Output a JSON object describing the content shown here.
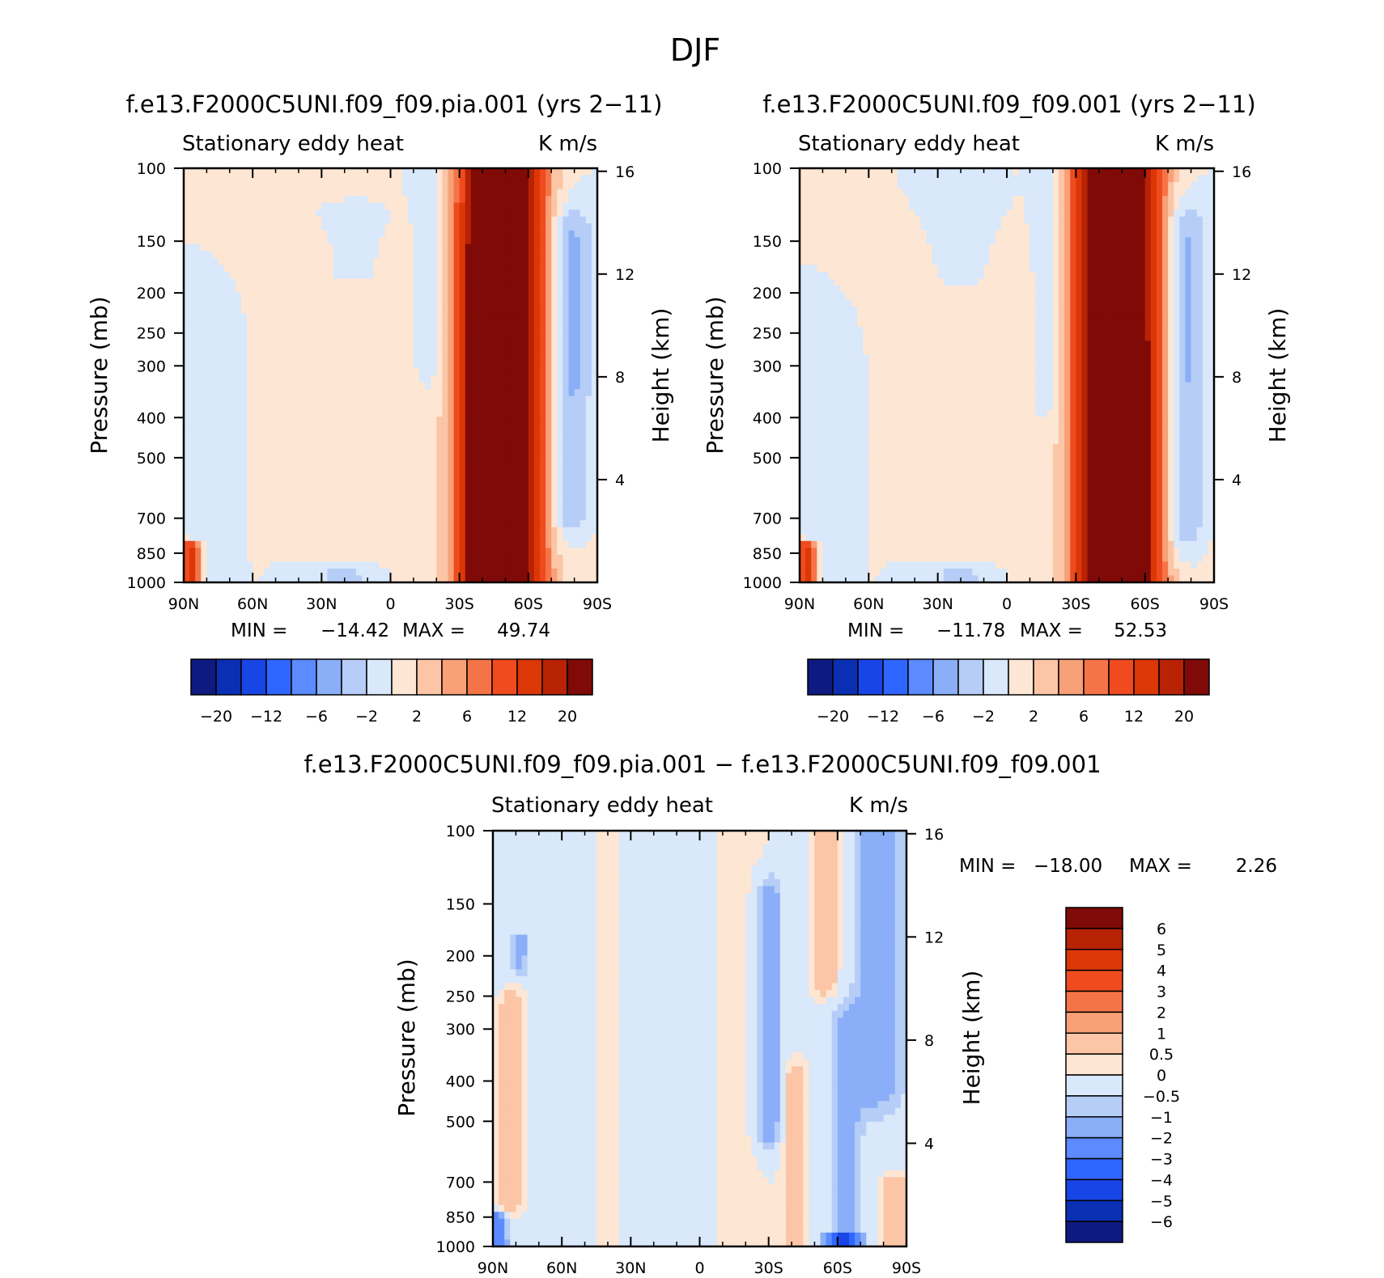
{
  "figure": {
    "title": "DJF",
    "colors": {
      "ramp_main": [
        "#0d1a80",
        "#0b2fb3",
        "#1845e6",
        "#2f66ff",
        "#5b8bff",
        "#8aaef7",
        "#b5cdf7",
        "#d9e8fa",
        "#fde6d3",
        "#fbc5a6",
        "#f8a077",
        "#f57447",
        "#ef4b1f",
        "#dc3707",
        "#b82205",
        "#7f0a07"
      ],
      "zero_blue": "#d9e8fa",
      "zero_red": "#fde6d3"
    }
  },
  "chart_data": [
    {
      "id": "panel1",
      "type": "heatmap",
      "title": "f.e13.F2000C5UNI.f09_f09.pia.001 (yrs 2−11)",
      "left_label": "Stationary eddy heat",
      "right_label": "K m/s",
      "xlabel": "",
      "ylabel": "Pressure (mb)",
      "y2label": "Height (km)",
      "x_ticks": [
        "90N",
        "60N",
        "30N",
        "0",
        "30S",
        "60S",
        "90S"
      ],
      "x_range": [
        90,
        -90
      ],
      "y_ticks": [
        100,
        150,
        200,
        250,
        300,
        400,
        500,
        700,
        850,
        1000
      ],
      "y_range": [
        100,
        1000
      ],
      "y_scale": "log",
      "y2_ticks": [
        16,
        12,
        8,
        4
      ],
      "stats": {
        "min_label": "MIN =",
        "min": "−14.42",
        "max_label": "MAX =",
        "max": "49.74"
      },
      "colorbar": {
        "orientation": "horizontal",
        "labels": [
          "−20",
          "−12",
          "−6",
          "−2",
          "2",
          "6",
          "12",
          "20"
        ]
      },
      "features": [
        {
          "lat": -48,
          "sigma_lat": 11,
          "p_top": 100,
          "p_bot": 1000,
          "amp": 38
        },
        {
          "lat": -43,
          "sigma_lat": 6,
          "p_top": 180,
          "p_bot": 1000,
          "amp": 20
        },
        {
          "lat": -78,
          "sigma_lat": 7,
          "p_top": 150,
          "p_bot": 650,
          "amp": -5
        },
        {
          "lat": -20,
          "sigma_lat": 5,
          "p_top": 100,
          "p_bot": 300,
          "amp": -1.5
        },
        {
          "lat": 15,
          "sigma_lat": 6,
          "p_top": 130,
          "p_bot": 180,
          "amp": -1.5
        },
        {
          "lat": 12,
          "sigma_lat": 14,
          "p_top": 180,
          "p_bot": 900,
          "amp": 0.7
        },
        {
          "lat": 20,
          "sigma_lat": 10,
          "p_top": 930,
          "p_bot": 1000,
          "amp": -3.2
        },
        {
          "lat": 80,
          "sigma_lat": 5,
          "p_top": 280,
          "p_bot": 850,
          "amp": -1.6
        },
        {
          "lat": 87,
          "sigma_lat": 3,
          "p_top": 820,
          "p_bot": 1000,
          "amp": 14
        },
        {
          "lat": -88,
          "sigma_lat": 8,
          "p_top": 400,
          "p_bot": 1000,
          "amp": 0.8
        }
      ]
    },
    {
      "id": "panel2",
      "type": "heatmap",
      "title": "f.e13.F2000C5UNI.f09_f09.001 (yrs 2−11)",
      "left_label": "Stationary eddy heat",
      "right_label": "K m/s",
      "xlabel": "",
      "ylabel": "Pressure (mb)",
      "y2label": "Height (km)",
      "x_ticks": [
        "90N",
        "60N",
        "30N",
        "0",
        "30S",
        "60S",
        "90S"
      ],
      "x_range": [
        90,
        -90
      ],
      "y_ticks": [
        100,
        150,
        200,
        250,
        300,
        400,
        500,
        700,
        850,
        1000
      ],
      "y_range": [
        100,
        1000
      ],
      "y_scale": "log",
      "y2_ticks": [
        16,
        12,
        8,
        4
      ],
      "stats": {
        "min_label": "MIN =",
        "min": "−11.78",
        "max_label": "MAX =",
        "max": "52.53"
      },
      "colorbar": {
        "orientation": "horizontal",
        "labels": [
          "−20",
          "−12",
          "−6",
          "−2",
          "2",
          "6",
          "12",
          "20"
        ]
      },
      "features": [
        {
          "lat": -48,
          "sigma_lat": 11,
          "p_top": 100,
          "p_bot": 1000,
          "amp": 40
        },
        {
          "lat": -47,
          "sigma_lat": 6,
          "p_top": 280,
          "p_bot": 1000,
          "amp": 20
        },
        {
          "lat": -77,
          "sigma_lat": 7,
          "p_top": 150,
          "p_bot": 700,
          "amp": -5
        },
        {
          "lat": -20,
          "sigma_lat": 5,
          "p_top": 100,
          "p_bot": 350,
          "amp": -1.5
        },
        {
          "lat": 18,
          "sigma_lat": 7,
          "p_top": 110,
          "p_bot": 180,
          "amp": -1.5
        },
        {
          "lat": 12,
          "sigma_lat": 14,
          "p_top": 180,
          "p_bot": 900,
          "amp": 0.7
        },
        {
          "lat": 20,
          "sigma_lat": 10,
          "p_top": 930,
          "p_bot": 1000,
          "amp": -3.2
        },
        {
          "lat": 80,
          "sigma_lat": 5,
          "p_top": 300,
          "p_bot": 850,
          "amp": -1.8
        },
        {
          "lat": 87,
          "sigma_lat": 3,
          "p_top": 820,
          "p_bot": 1000,
          "amp": 14
        },
        {
          "lat": -88,
          "sigma_lat": 8,
          "p_top": 400,
          "p_bot": 1000,
          "amp": 0.8
        }
      ]
    },
    {
      "id": "panel3",
      "type": "heatmap",
      "title": "f.e13.F2000C5UNI.f09_f09.pia.001 − f.e13.F2000C5UNI.f09_f09.001",
      "left_label": "Stationary eddy heat",
      "right_label": "K m/s",
      "xlabel": "",
      "ylabel": "Pressure (mb)",
      "y2label": "Height (km)",
      "x_ticks": [
        "90N",
        "60N",
        "30N",
        "0",
        "30S",
        "60S",
        "90S"
      ],
      "x_range": [
        90,
        -90
      ],
      "y_ticks": [
        100,
        150,
        200,
        250,
        300,
        400,
        500,
        700,
        850,
        1000
      ],
      "y_range": [
        100,
        1000
      ],
      "y_scale": "log",
      "y2_ticks": [
        16,
        12,
        8,
        4
      ],
      "stats": {
        "min_label": "MIN =",
        "min": "−18.00",
        "max_label": "MAX =",
        "max": "2.26"
      },
      "colorbar": {
        "orientation": "vertical",
        "labels": [
          "6",
          "5",
          "4",
          "3",
          "2",
          "1",
          "0.5",
          "0",
          "−0.5",
          "−1",
          "−2",
          "−3",
          "−4",
          "−5",
          "−6"
        ]
      },
      "features": [
        {
          "lat": -78,
          "sigma_lat": 8,
          "p_top": 100,
          "p_bot": 400,
          "amp": -1.5
        },
        {
          "lat": -64,
          "sigma_lat": 5,
          "p_top": 300,
          "p_bot": 1000,
          "amp": -1.2
        },
        {
          "lat": -55,
          "sigma_lat": 5,
          "p_top": 100,
          "p_bot": 230,
          "amp": 1.5
        },
        {
          "lat": -42,
          "sigma_lat": 4,
          "p_top": 400,
          "p_bot": 1000,
          "amp": 1.5
        },
        {
          "lat": -30,
          "sigma_lat": 4,
          "p_top": 150,
          "p_bot": 500,
          "amp": -2.5
        },
        {
          "lat": -20,
          "sigma_lat": 14,
          "p_top": 100,
          "p_bot": 1000,
          "amp": 0.7
        },
        {
          "lat": 40,
          "sigma_lat": 10,
          "p_top": 100,
          "p_bot": 1000,
          "amp": 0.6
        },
        {
          "lat": -85,
          "sigma_lat": 6,
          "p_top": 700,
          "p_bot": 1000,
          "amp": 1.5
        },
        {
          "lat": -62,
          "sigma_lat": 5,
          "p_top": 960,
          "p_bot": 1000,
          "amp": -4
        },
        {
          "lat": 82,
          "sigma_lat": 5,
          "p_top": 270,
          "p_bot": 750,
          "amp": 1.6
        },
        {
          "lat": 88,
          "sigma_lat": 3,
          "p_top": 850,
          "p_bot": 1000,
          "amp": -3
        },
        {
          "lat": 78,
          "sigma_lat": 3,
          "p_top": 180,
          "p_bot": 220,
          "amp": -1.2
        }
      ]
    }
  ]
}
